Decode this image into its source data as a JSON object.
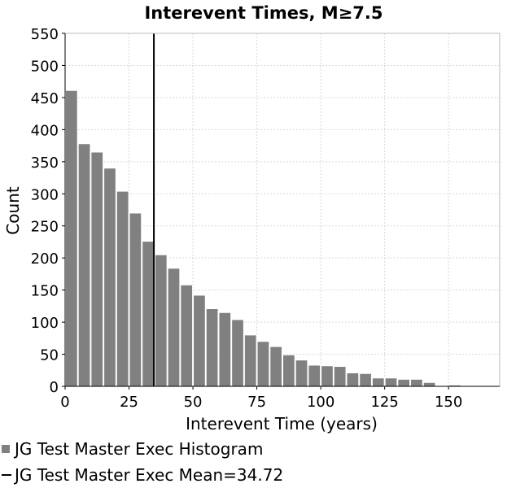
{
  "chart_data": {
    "type": "bar",
    "title": "Interevent Times, M≥7.5",
    "xlabel": "Interevent Time (years)",
    "ylabel": "Count",
    "xlim": [
      0,
      170
    ],
    "ylim": [
      0,
      550
    ],
    "xticks": [
      0,
      25,
      50,
      75,
      100,
      125,
      150
    ],
    "yticks": [
      0,
      50,
      100,
      150,
      200,
      250,
      300,
      350,
      400,
      450,
      500,
      550
    ],
    "grid": true,
    "bin_width": 5,
    "bins_start": [
      0,
      5,
      10,
      15,
      20,
      25,
      30,
      35,
      40,
      45,
      50,
      55,
      60,
      65,
      70,
      75,
      80,
      85,
      90,
      95,
      100,
      105,
      110,
      115,
      120,
      125,
      130,
      135,
      140,
      145,
      150,
      155,
      160,
      165
    ],
    "series": [
      {
        "name": "JG Test Master Exec Histogram",
        "color": "#808080",
        "values": [
          461,
          378,
          365,
          340,
          304,
          270,
          226,
          205,
          184,
          158,
          142,
          121,
          115,
          104,
          80,
          70,
          62,
          49,
          41,
          33,
          32,
          31,
          21,
          20,
          13,
          13,
          11,
          11,
          6,
          0,
          2,
          0,
          1,
          1
        ]
      }
    ],
    "mean_line": {
      "name": "JG Test Master Exec Mean=34.72",
      "value": 34.72,
      "color": "#000000"
    },
    "legend_position": "bottom-left"
  },
  "legend": {
    "histogram_label": "JG Test Master Exec Histogram",
    "mean_label": "JG Test Master Exec Mean=34.72"
  }
}
